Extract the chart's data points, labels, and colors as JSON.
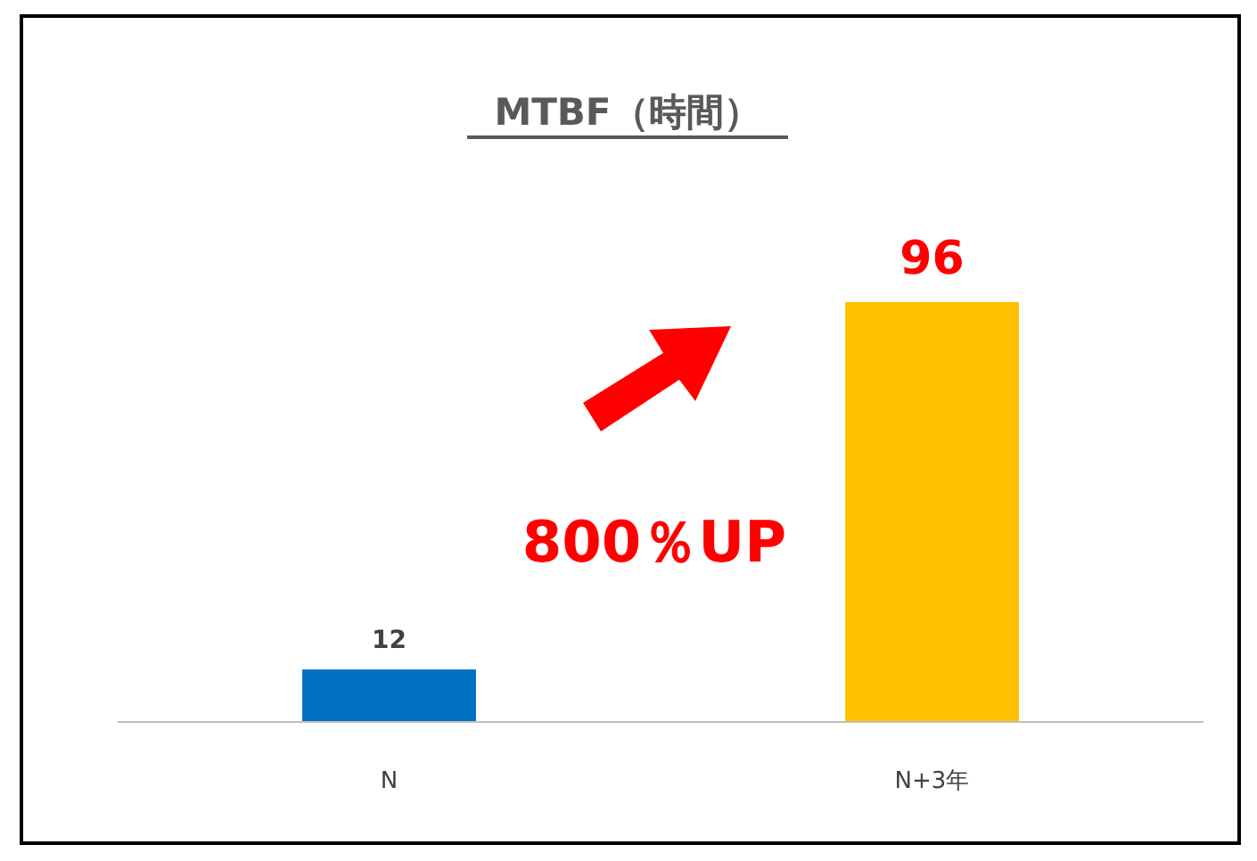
{
  "chart_data": {
    "type": "bar",
    "title": "MTBF（時間）",
    "categories": [
      "N",
      "N+3年"
    ],
    "values": [
      12,
      96
    ],
    "colors": [
      "#0070c0",
      "#ffc000"
    ],
    "data_labels": true,
    "annotations": [
      "800％UP"
    ]
  }
}
